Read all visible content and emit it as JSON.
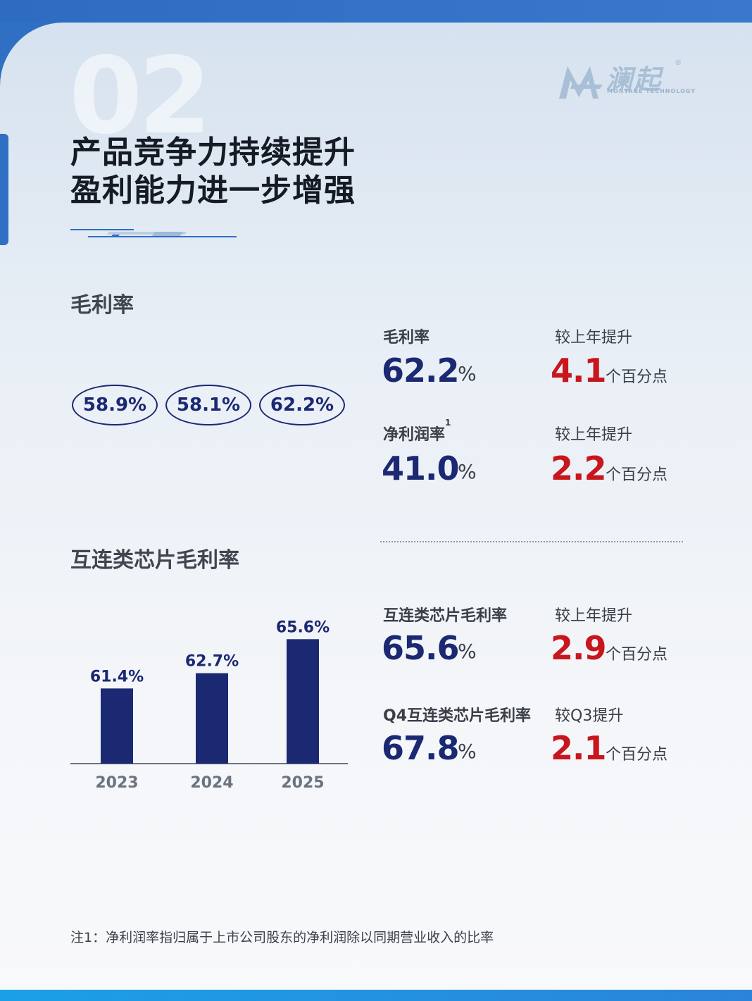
{
  "section_number": "02",
  "title_lines": [
    "产品竞争力持续提升",
    "盈利能力进一步增强"
  ],
  "logo": {
    "name": "澜起",
    "sub": "MONTAGE TECHNOLOGY",
    "reg": "®"
  },
  "gross_margin": {
    "label": "毛利率",
    "pills": [
      "58.9%",
      "58.1%",
      "62.2%"
    ]
  },
  "metrics": [
    {
      "label": "毛利率",
      "sup": "",
      "value": "62.2",
      "unit": "%",
      "cmp_label": "较上年提升",
      "cmp_value": "4.1",
      "cmp_unit": "个百分点"
    },
    {
      "label": "净利润率",
      "sup": "1",
      "value": "41.0",
      "unit": "%",
      "cmp_label": "较上年提升",
      "cmp_value": "2.2",
      "cmp_unit": "个百分点"
    },
    {
      "label": "互连类芯片毛利率",
      "sup": "",
      "value": "65.6",
      "unit": "%",
      "cmp_label": "较上年提升",
      "cmp_value": "2.9",
      "cmp_unit": "个百分点"
    },
    {
      "label": "Q4互连类芯片毛利率",
      "sup": "",
      "value": "67.8",
      "unit": "%",
      "cmp_label": "较Q3提升",
      "cmp_value": "2.1",
      "cmp_unit": "个百分点"
    }
  ],
  "interconnect_label": "互连类芯片毛利率",
  "chart_data": {
    "type": "bar",
    "title": "互连类芯片毛利率",
    "categories": [
      "2023",
      "2024",
      "2025"
    ],
    "values": [
      61.4,
      62.7,
      65.6
    ],
    "value_labels": [
      "61.4%",
      "62.7%",
      "65.6%"
    ],
    "bar_color": "#1b2872",
    "ylim": [
      55,
      67
    ],
    "grid": false
  },
  "footnote": "注1：净利润率指归属于上市公司股东的净利润除以同期营业收入的比率"
}
